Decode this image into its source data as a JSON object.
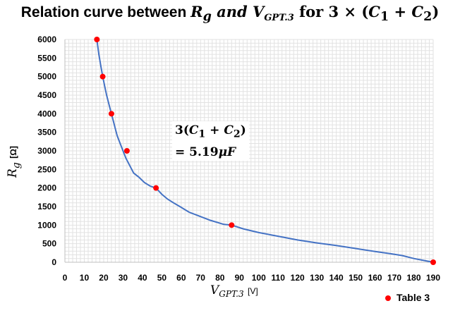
{
  "chart_data": {
    "type": "line",
    "title": {
      "prefix": "Relation curve between ",
      "r_var": "R",
      "r_sub": "g",
      "and_word": " and ",
      "v_var": "V",
      "v_sub": "GPT.3",
      "suffix_for": " for 3 × (",
      "c1": "C",
      "c1_sub": "1",
      "plus": " + ",
      "c2": "C",
      "c2_sub": "2",
      "close": ")"
    },
    "xlabel": {
      "var": "V",
      "sub": "GPT.3",
      "unit": "[V]"
    },
    "ylabel": {
      "var": "R",
      "sub": "g",
      "unit": "[Ω]"
    },
    "xlim": [
      0,
      190
    ],
    "ylim": [
      0,
      6000
    ],
    "xticks": [
      0,
      10,
      20,
      30,
      40,
      50,
      60,
      70,
      80,
      90,
      100,
      110,
      120,
      130,
      140,
      150,
      160,
      170,
      180,
      190
    ],
    "yticks": [
      0,
      500,
      1000,
      1500,
      2000,
      2500,
      3000,
      3500,
      4000,
      4500,
      5000,
      5500,
      6000
    ],
    "grid": true,
    "series": [
      {
        "name": "",
        "color": "#4472c4",
        "x": [
          16.5,
          17.5,
          18.5,
          19.5,
          20.5,
          21.5,
          22.5,
          24,
          25,
          26,
          27,
          28.5,
          30,
          31.5,
          33.5,
          35.5,
          38,
          41,
          44,
          47,
          50,
          53,
          56,
          60,
          64,
          69,
          75,
          82,
          86,
          92,
          100,
          110,
          120,
          130,
          140,
          150,
          160,
          168,
          174,
          180,
          185,
          190
        ],
        "y": [
          6000,
          5600,
          5300,
          5000,
          4750,
          4500,
          4300,
          4000,
          3800,
          3600,
          3400,
          3200,
          3000,
          2800,
          2600,
          2400,
          2300,
          2150,
          2050,
          2000,
          1830,
          1700,
          1600,
          1480,
          1350,
          1250,
          1130,
          1020,
          1000,
          900,
          800,
          700,
          600,
          520,
          450,
          370,
          290,
          230,
          180,
          100,
          50,
          0
        ]
      },
      {
        "name": "Table 3",
        "color": "#ff0000",
        "x": [
          16.5,
          19.5,
          24,
          32,
          47,
          86,
          190
        ],
        "y": [
          6000,
          5000,
          4000,
          3000,
          2000,
          1000,
          0
        ]
      }
    ],
    "annotation": {
      "line1_coef": "3(",
      "line1_c1": "C",
      "line1_c1_sub": "1",
      "line1_plus": " + ",
      "line1_c2": "C",
      "line1_c2_sub": "2",
      "line1_close": ")",
      "line2": "= 5.19",
      "line2_unit": "μF"
    },
    "legend": {
      "label": "Table 3",
      "position": "bottom-right"
    }
  }
}
